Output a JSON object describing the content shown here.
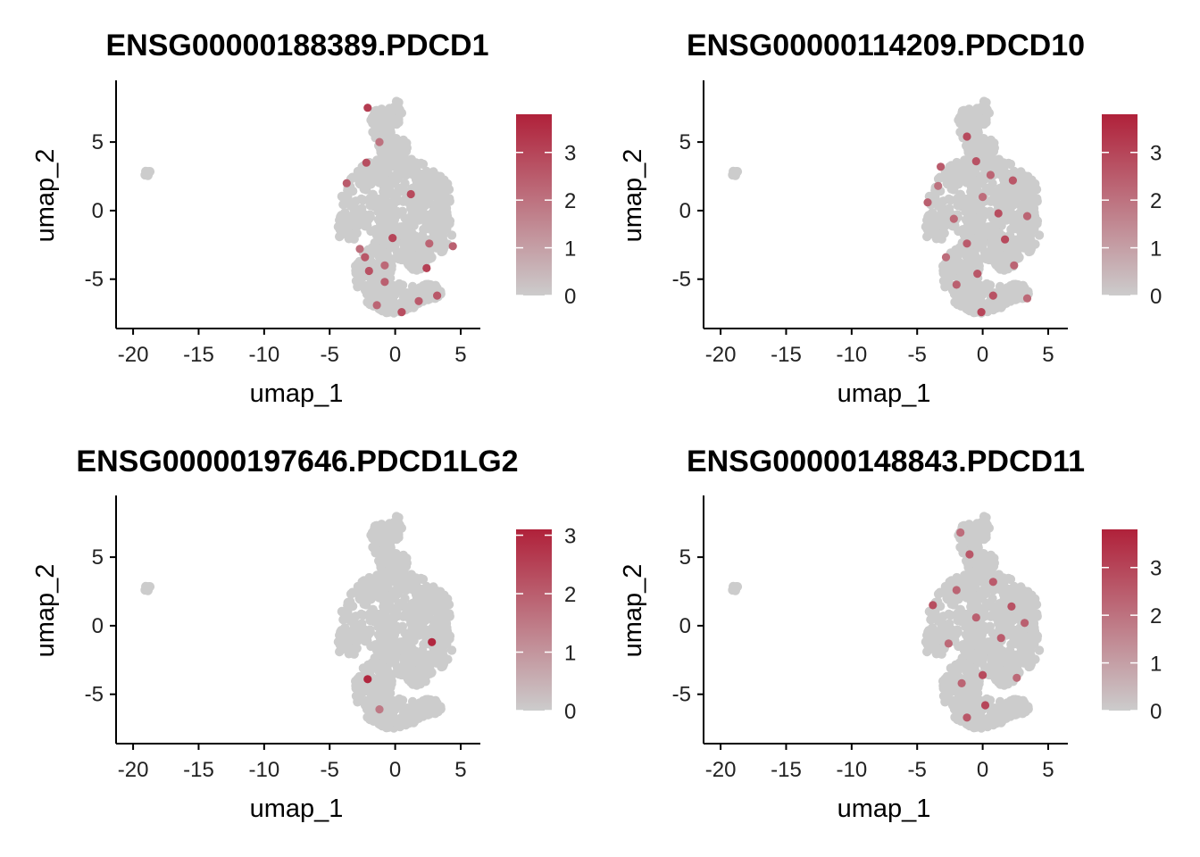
{
  "chart_data": [
    {
      "type": "scatter",
      "title": "ENSG00000188389.PDCD1",
      "xlabel": "umap_1",
      "ylabel": "umap_2",
      "xlim": [
        -21.3,
        6.5
      ],
      "ylim": [
        -8.6,
        9.5
      ],
      "xticks": [
        -20,
        -15,
        -10,
        -5,
        0,
        5
      ],
      "yticks": [
        -5,
        0,
        5
      ],
      "legend": {
        "position": "right",
        "min": 0,
        "max": 3.8,
        "ticks": [
          0,
          1,
          2,
          3
        ]
      },
      "colors": {
        "low": "#cccccc",
        "high": "#b0213a"
      },
      "expressing_cells": [
        {
          "x": -2.1,
          "y": 7.5,
          "v": 3.2
        },
        {
          "x": -2.2,
          "y": 3.5,
          "v": 2.8
        },
        {
          "x": -3.7,
          "y": 2.0,
          "v": 2.5
        },
        {
          "x": 1.2,
          "y": 1.2,
          "v": 2.9
        },
        {
          "x": -0.2,
          "y": -2.0,
          "v": 3.0
        },
        {
          "x": -2.3,
          "y": -3.4,
          "v": 2.6
        },
        {
          "x": -2.0,
          "y": -4.4,
          "v": 2.7
        },
        {
          "x": -0.8,
          "y": -5.2,
          "v": 2.4
        },
        {
          "x": 2.4,
          "y": -4.2,
          "v": 3.1
        },
        {
          "x": 3.2,
          "y": -6.2,
          "v": 2.6
        },
        {
          "x": 4.4,
          "y": -2.6,
          "v": 2.4
        },
        {
          "x": 0.5,
          "y": -7.4,
          "v": 2.8
        },
        {
          "x": -1.4,
          "y": -6.9,
          "v": 2.3
        },
        {
          "x": -2.7,
          "y": -2.8,
          "v": 2.1
        },
        {
          "x": 1.8,
          "y": -6.6,
          "v": 2.5
        },
        {
          "x": -1.2,
          "y": 5.0,
          "v": 2.0
        },
        {
          "x": -0.8,
          "y": -4.0,
          "v": 2.2
        },
        {
          "x": 2.6,
          "y": -2.4,
          "v": 2.3
        }
      ]
    },
    {
      "type": "scatter",
      "title": "ENSG00000114209.PDCD10",
      "xlabel": "umap_1",
      "ylabel": "umap_2",
      "xlim": [
        -21.3,
        6.5
      ],
      "ylim": [
        -8.6,
        9.5
      ],
      "xticks": [
        -20,
        -15,
        -10,
        -5,
        0,
        5
      ],
      "yticks": [
        -5,
        0,
        5
      ],
      "legend": {
        "position": "right",
        "min": 0,
        "max": 3.8,
        "ticks": [
          0,
          1,
          2,
          3
        ]
      },
      "colors": {
        "low": "#cccccc",
        "high": "#b0213a"
      },
      "expressing_cells": [
        {
          "x": -1.2,
          "y": 5.4,
          "v": 2.9
        },
        {
          "x": -3.2,
          "y": 3.2,
          "v": 2.5
        },
        {
          "x": -0.5,
          "y": 3.6,
          "v": 2.7
        },
        {
          "x": 0.6,
          "y": 2.6,
          "v": 2.3
        },
        {
          "x": 2.3,
          "y": 2.2,
          "v": 2.6
        },
        {
          "x": -4.2,
          "y": 0.6,
          "v": 2.4
        },
        {
          "x": -2.2,
          "y": -0.6,
          "v": 2.2
        },
        {
          "x": 1.2,
          "y": -0.2,
          "v": 2.8
        },
        {
          "x": 3.4,
          "y": -0.4,
          "v": 2.3
        },
        {
          "x": -1.2,
          "y": -2.4,
          "v": 2.5
        },
        {
          "x": 1.7,
          "y": -2.1,
          "v": 2.9
        },
        {
          "x": -2.8,
          "y": -3.4,
          "v": 2.1
        },
        {
          "x": -0.4,
          "y": -4.6,
          "v": 2.6
        },
        {
          "x": 2.4,
          "y": -4.0,
          "v": 2.3
        },
        {
          "x": -2.0,
          "y": -5.4,
          "v": 2.4
        },
        {
          "x": 0.8,
          "y": -6.2,
          "v": 2.7
        },
        {
          "x": -0.1,
          "y": -7.4,
          "v": 3.0
        },
        {
          "x": 3.4,
          "y": -6.4,
          "v": 2.2
        },
        {
          "x": -3.4,
          "y": 1.8,
          "v": 2.0
        },
        {
          "x": 0.0,
          "y": 1.0,
          "v": 2.1
        }
      ]
    },
    {
      "type": "scatter",
      "title": "ENSG00000197646.PDCD1LG2",
      "xlabel": "umap_1",
      "ylabel": "umap_2",
      "xlim": [
        -21.3,
        6.5
      ],
      "ylim": [
        -8.6,
        9.5
      ],
      "xticks": [
        -20,
        -15,
        -10,
        -5,
        0,
        5
      ],
      "yticks": [
        -5,
        0,
        5
      ],
      "legend": {
        "position": "right",
        "min": 0,
        "max": 3.1,
        "ticks": [
          0,
          1,
          2,
          3
        ]
      },
      "colors": {
        "low": "#cccccc",
        "high": "#b0213a"
      },
      "expressing_cells": [
        {
          "x": 2.8,
          "y": -1.2,
          "v": 3.0
        },
        {
          "x": -2.1,
          "y": -3.9,
          "v": 3.0
        },
        {
          "x": -1.2,
          "y": -6.1,
          "v": 1.5
        }
      ]
    },
    {
      "type": "scatter",
      "title": "ENSG00000148843.PDCD11",
      "xlabel": "umap_1",
      "ylabel": "umap_2",
      "xlim": [
        -21.3,
        6.5
      ],
      "ylim": [
        -8.6,
        9.5
      ],
      "xticks": [
        -20,
        -15,
        -10,
        -5,
        0,
        5
      ],
      "yticks": [
        -5,
        0,
        5
      ],
      "legend": {
        "position": "right",
        "min": 0,
        "max": 3.8,
        "ticks": [
          0,
          1,
          2,
          3
        ]
      },
      "colors": {
        "low": "#cccccc",
        "high": "#b0213a"
      },
      "expressing_cells": [
        {
          "x": -1.0,
          "y": 5.2,
          "v": 2.6
        },
        {
          "x": -3.8,
          "y": 1.5,
          "v": 2.8
        },
        {
          "x": -2.0,
          "y": 2.6,
          "v": 2.3
        },
        {
          "x": 0.8,
          "y": 3.2,
          "v": 2.5
        },
        {
          "x": -0.5,
          "y": 0.6,
          "v": 2.4
        },
        {
          "x": 2.2,
          "y": 1.4,
          "v": 2.7
        },
        {
          "x": -2.6,
          "y": -1.3,
          "v": 2.2
        },
        {
          "x": 1.4,
          "y": -0.9,
          "v": 2.5
        },
        {
          "x": 0.0,
          "y": -3.6,
          "v": 2.9
        },
        {
          "x": -1.6,
          "y": -4.2,
          "v": 2.3
        },
        {
          "x": 0.2,
          "y": -5.8,
          "v": 3.0
        },
        {
          "x": -1.2,
          "y": -6.7,
          "v": 2.6
        },
        {
          "x": 2.6,
          "y": -3.8,
          "v": 2.2
        },
        {
          "x": 3.2,
          "y": 0.2,
          "v": 2.4
        },
        {
          "x": -1.7,
          "y": 6.8,
          "v": 2.1
        }
      ]
    }
  ]
}
